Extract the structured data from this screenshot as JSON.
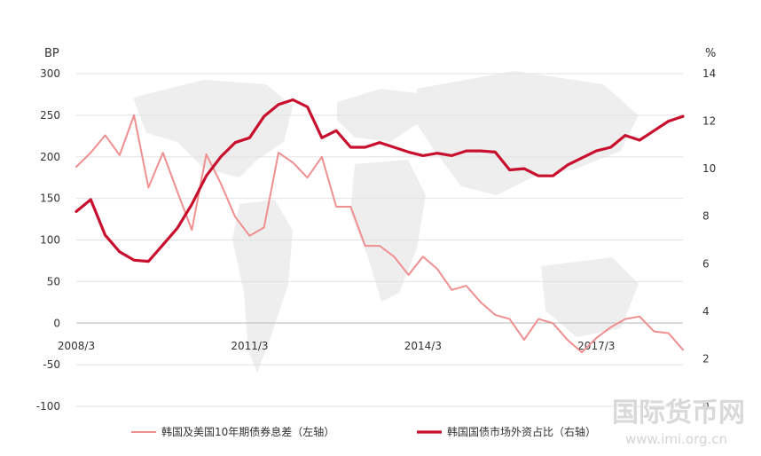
{
  "chart_data": {
    "type": "line",
    "left_unit": "BP",
    "right_unit": "%",
    "left_ylim": [
      -100,
      300
    ],
    "left_ticks": [
      "300",
      "250",
      "200",
      "150",
      "100",
      "50",
      "0",
      "-50",
      "-100"
    ],
    "right_ylim": [
      0,
      14
    ],
    "right_ticks": [
      "14",
      "12",
      "10",
      "8",
      "6",
      "4",
      "2",
      "0"
    ],
    "x_tick_labels": [
      "2008/3",
      "2011/3",
      "2014/3",
      "2017/3"
    ],
    "x_tick_index": [
      0,
      12,
      24,
      36
    ],
    "grid": true,
    "legend_position": "bottom",
    "series": [
      {
        "name": "韩国及美国10年期债券息差（左轴）",
        "axis": "left",
        "color": "#f08f8f",
        "values": [
          188,
          205,
          226,
          202,
          250,
          163,
          205,
          158,
          112,
          203,
          168,
          128,
          105,
          115,
          205,
          193,
          175,
          200,
          140,
          140,
          93,
          93,
          80,
          58,
          80,
          65,
          40,
          45,
          25,
          10,
          5,
          -20,
          5,
          0,
          -20,
          -35,
          -18,
          -5,
          5,
          8,
          -10,
          -12,
          -32
        ]
      },
      {
        "name": "韩国国债市场外资占比（右轴）",
        "axis": "right",
        "color": "#c8102e",
        "values": [
          8.2,
          8.7,
          7.2,
          6.5,
          6.15,
          6.1,
          6.8,
          7.5,
          8.5,
          9.7,
          10.5,
          11.1,
          11.3,
          12.2,
          12.7,
          12.9,
          12.6,
          11.3,
          11.6,
          10.9,
          10.9,
          11.1,
          10.9,
          10.7,
          10.55,
          10.65,
          10.55,
          10.75,
          10.75,
          10.7,
          9.95,
          10.0,
          9.7,
          9.7,
          10.15,
          10.45,
          10.75,
          10.9,
          11.4,
          11.2,
          11.6,
          12.0,
          12.2
        ]
      }
    ]
  },
  "watermark": {
    "text": "国际货币网",
    "url": "www.imi.org.cn"
  }
}
